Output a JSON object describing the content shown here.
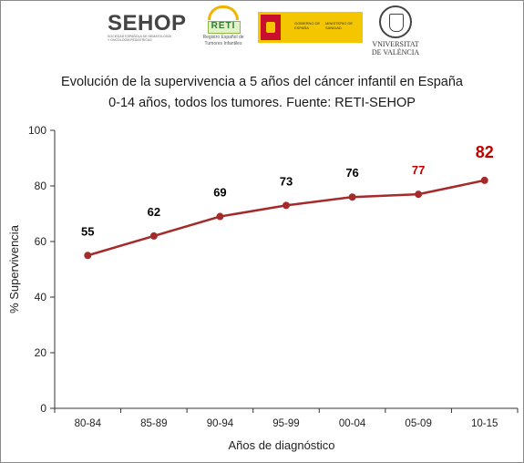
{
  "logos": {
    "sehop": {
      "name": "SEHOP",
      "subtitle": "SOCIEDAD ESPAÑOLA DE HEMATOLOGÍA Y ONCOLOGÍA PEDIÁTRICAS"
    },
    "reti": {
      "name": "RETI",
      "subtitle": "Registro Español de Tumores Infantiles"
    },
    "gobierno": {
      "text1": "GOBIERNO DE ESPAÑA",
      "text2": "MINISTERIO DE SANIDAD"
    },
    "universitat": {
      "text": "VNIVERSITAT DE VALÈNCIA"
    }
  },
  "colors": {
    "line": "#a52a2a",
    "highlight": "#c00000",
    "label": "#000000",
    "axis": "#333333",
    "grid": "#cccccc"
  },
  "chart_data": {
    "type": "line",
    "title_line1": "Evolución de la supervivencia a 5 años del cáncer infantil en España",
    "title_line2": "0-14 años, todos los tumores. Fuente: RETI-SEHOP",
    "xlabel": "Años de diagnóstico",
    "ylabel": "% Supervivencia",
    "ylim": [
      0,
      100
    ],
    "yticks": [
      0,
      20,
      40,
      60,
      80,
      100
    ],
    "categories": [
      "80-84",
      "85-89",
      "90-94",
      "95-99",
      "00-04",
      "05-09",
      "10-15"
    ],
    "series": [
      {
        "values": [
          55,
          62,
          69,
          73,
          76,
          77,
          82
        ]
      }
    ],
    "data_labels": [
      "55",
      "62",
      "69",
      "73",
      "76",
      "77",
      "82"
    ],
    "grid": false,
    "legend": "none"
  }
}
